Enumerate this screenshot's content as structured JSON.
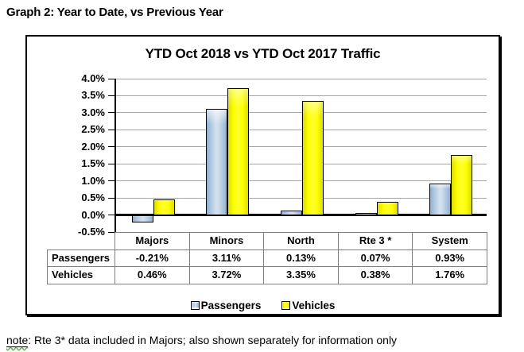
{
  "page": {
    "doc_title": "Graph 2: Year to Date, vs Previous Year",
    "note_prefix": "note",
    "note_text": ": Rte 3* data included in Majors; also shown separately for information only"
  },
  "chart_data": {
    "type": "bar",
    "title": "YTD Oct 2018 vs YTD Oct 2017 Traffic",
    "categories": [
      "Majors",
      "Minors",
      "North",
      "Rte 3 *",
      "System"
    ],
    "series": [
      {
        "name": "Passengers",
        "key": "passengers",
        "color": "#AFC9E1",
        "values": [
          -0.21,
          3.11,
          0.13,
          0.07,
          0.93
        ]
      },
      {
        "name": "Vehicles",
        "key": "vehicles",
        "color": "#FFFF00",
        "values": [
          0.46,
          3.72,
          3.35,
          0.38,
          1.76
        ]
      }
    ],
    "table_values": [
      [
        "-0.21%",
        "3.11%",
        "0.13%",
        "0.07%",
        "0.93%"
      ],
      [
        "0.46%",
        "3.72%",
        "3.35%",
        "0.38%",
        "1.76%"
      ]
    ],
    "ylim": [
      -0.5,
      4.0
    ],
    "ytick_step": 0.5,
    "ytick_labels": [
      "4.0%",
      "3.5%",
      "3.0%",
      "2.5%",
      "2.0%",
      "1.5%",
      "1.0%",
      "0.5%",
      "0.0%",
      "-0.5%"
    ],
    "grid": true,
    "legend_position": "bottom",
    "gridline_color": "#A6A6A6",
    "axis_color": "#000000",
    "table_border_color": "#7F7F7F"
  }
}
